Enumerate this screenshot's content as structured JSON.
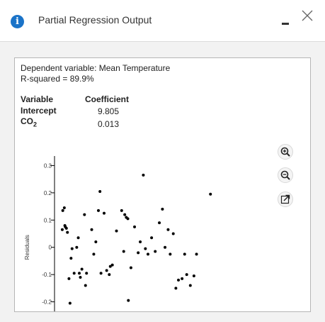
{
  "window": {
    "title": "Partial Regression Output",
    "info_icon_glyph": "i"
  },
  "output": {
    "dependent_line": "Dependent variable: Mean Temperature",
    "rsquared_line": "R-squared = 89.9%",
    "table": {
      "header_variable": "Variable",
      "header_coefficient": "Coefficient",
      "rows": [
        {
          "name": "Intercept",
          "coefficient": "9.805"
        },
        {
          "name": "CO",
          "sub": "2",
          "coefficient": "0.013"
        }
      ]
    }
  },
  "chart_data": {
    "type": "scatter",
    "ylabel": "Residuals",
    "xlabel": "",
    "ylim": [
      -0.235,
      0.335
    ],
    "xlim": [
      0,
      41
    ],
    "yticks": [
      0.3,
      0.2,
      0.1,
      0,
      -0.1,
      -0.2
    ],
    "ytick_labels": [
      "0.3",
      "0.2",
      "0.1",
      "0",
      "-0.1",
      "-0.2"
    ],
    "grid": false,
    "points": [
      {
        "x": 1.5,
        "y": 0.065
      },
      {
        "x": 1.6,
        "y": 0.135
      },
      {
        "x": 1.9,
        "y": 0.145
      },
      {
        "x": 2.0,
        "y": 0.08
      },
      {
        "x": 2.1,
        "y": 0.075
      },
      {
        "x": 2.3,
        "y": 0.07
      },
      {
        "x": 2.5,
        "y": 0.055
      },
      {
        "x": 2.8,
        "y": -0.115
      },
      {
        "x": 3.0,
        "y": -0.205
      },
      {
        "x": 3.2,
        "y": -0.04
      },
      {
        "x": 3.4,
        "y": -0.005
      },
      {
        "x": 3.8,
        "y": -0.095
      },
      {
        "x": 4.3,
        "y": 0.0
      },
      {
        "x": 4.6,
        "y": 0.035
      },
      {
        "x": 4.8,
        "y": -0.095
      },
      {
        "x": 5.0,
        "y": -0.11
      },
      {
        "x": 5.3,
        "y": -0.08
      },
      {
        "x": 5.8,
        "y": 0.12
      },
      {
        "x": 6.0,
        "y": -0.14
      },
      {
        "x": 6.2,
        "y": -0.095
      },
      {
        "x": 7.2,
        "y": 0.065
      },
      {
        "x": 7.6,
        "y": -0.025
      },
      {
        "x": 8.0,
        "y": 0.02
      },
      {
        "x": 8.5,
        "y": 0.135
      },
      {
        "x": 8.8,
        "y": 0.205
      },
      {
        "x": 9.0,
        "y": -0.095
      },
      {
        "x": 9.6,
        "y": 0.125
      },
      {
        "x": 10.1,
        "y": -0.085
      },
      {
        "x": 10.6,
        "y": -0.1
      },
      {
        "x": 10.8,
        "y": -0.07
      },
      {
        "x": 11.2,
        "y": -0.065
      },
      {
        "x": 12.0,
        "y": 0.06
      },
      {
        "x": 13.0,
        "y": 0.135
      },
      {
        "x": 13.4,
        "y": -0.015
      },
      {
        "x": 13.6,
        "y": 0.12
      },
      {
        "x": 13.9,
        "y": 0.11
      },
      {
        "x": 14.2,
        "y": 0.105
      },
      {
        "x": 14.3,
        "y": -0.195
      },
      {
        "x": 14.8,
        "y": -0.075
      },
      {
        "x": 15.5,
        "y": 0.075
      },
      {
        "x": 16.2,
        "y": -0.02
      },
      {
        "x": 16.6,
        "y": 0.02
      },
      {
        "x": 17.2,
        "y": 0.265
      },
      {
        "x": 17.6,
        "y": -0.005
      },
      {
        "x": 18.1,
        "y": -0.025
      },
      {
        "x": 18.8,
        "y": 0.035
      },
      {
        "x": 19.5,
        "y": -0.015
      },
      {
        "x": 20.3,
        "y": 0.09
      },
      {
        "x": 20.9,
        "y": 0.14
      },
      {
        "x": 21.4,
        "y": 0.0
      },
      {
        "x": 22.0,
        "y": 0.065
      },
      {
        "x": 22.4,
        "y": -0.025
      },
      {
        "x": 23.0,
        "y": 0.05
      },
      {
        "x": 23.5,
        "y": -0.15
      },
      {
        "x": 24.0,
        "y": -0.12
      },
      {
        "x": 24.7,
        "y": -0.115
      },
      {
        "x": 25.2,
        "y": -0.025
      },
      {
        "x": 25.6,
        "y": -0.1
      },
      {
        "x": 26.3,
        "y": -0.14
      },
      {
        "x": 27.0,
        "y": -0.105
      },
      {
        "x": 27.5,
        "y": -0.025
      },
      {
        "x": 30.2,
        "y": 0.195
      }
    ]
  },
  "toolbar": {
    "zoom_in_icon": "magnifier-plus-icon",
    "zoom_out_icon": "magnifier-minus-icon",
    "popout_icon": "popout-arrow-icon"
  }
}
